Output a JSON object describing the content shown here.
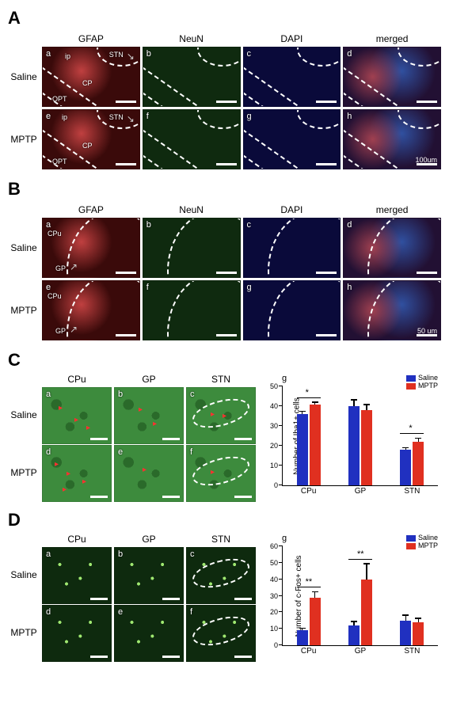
{
  "colors": {
    "gfap": "#3a0a0a",
    "neun": "#0f2a0f",
    "dapi": "#0a0a3a",
    "merged": "#221033",
    "iba_bg": "#3d8b3d",
    "cfos_bg": "#0e2a0e",
    "saline_bar": "#2030c0",
    "mptp_bar": "#e03020",
    "scalebar": "#ffffff"
  },
  "A": {
    "cols": [
      "GFAP",
      "NeuN",
      "DAPI",
      "merged"
    ],
    "rows": [
      "Saline",
      "MPTP"
    ],
    "subs": [
      "a",
      "b",
      "c",
      "d",
      "e",
      "f",
      "g",
      "h"
    ],
    "channels": [
      "gfap",
      "neun",
      "dapi",
      "merged",
      "gfap",
      "neun",
      "dapi",
      "merged"
    ],
    "regions": [
      "ip",
      "STN",
      "CP",
      "OPT"
    ],
    "scale": "100um"
  },
  "B": {
    "cols": [
      "GFAP",
      "NeuN",
      "DAPI",
      "merged"
    ],
    "rows": [
      "Saline",
      "MPTP"
    ],
    "subs": [
      "a",
      "b",
      "c",
      "d",
      "e",
      "f",
      "g",
      "h"
    ],
    "channels": [
      "gfap",
      "neun",
      "dapi",
      "merged",
      "gfap",
      "neun",
      "dapi",
      "merged"
    ],
    "regions": [
      "CPu",
      "GP"
    ],
    "scale": "50 um"
  },
  "C": {
    "cols": [
      "CPu",
      "GP",
      "STN"
    ],
    "rows": [
      "Saline",
      "MPTP"
    ],
    "subs": [
      "a",
      "b",
      "c",
      "d",
      "e",
      "f"
    ],
    "chart_sub": "g",
    "chart": {
      "type": "bar-grouped",
      "ylabel": "Number of Iba1+ cells",
      "ymax": 50,
      "ytick_step": 10,
      "categories": [
        "CPu",
        "GP",
        "STN"
      ],
      "series": [
        {
          "name": "Saline",
          "color_key": "saline_bar",
          "values": [
            36,
            40,
            18
          ],
          "err": [
            1.2,
            3.0,
            0.8
          ]
        },
        {
          "name": "MPTP",
          "color_key": "mptp_bar",
          "values": [
            41,
            38,
            22
          ],
          "err": [
            0.8,
            2.5,
            1.5
          ]
        }
      ],
      "sig": [
        {
          "cat": "CPu",
          "label": "*"
        },
        {
          "cat": "STN",
          "label": "*"
        }
      ]
    }
  },
  "D": {
    "cols": [
      "CPu",
      "GP",
      "STN"
    ],
    "rows": [
      "Saline",
      "MPTP"
    ],
    "subs": [
      "a",
      "b",
      "c",
      "d",
      "e",
      "f"
    ],
    "chart_sub": "g",
    "chart": {
      "type": "bar-grouped",
      "ylabel": "Number of c-Fos+ cells",
      "ymax": 60,
      "ytick_step": 10,
      "categories": [
        "CPu",
        "GP",
        "STN"
      ],
      "series": [
        {
          "name": "Saline",
          "color_key": "saline_bar",
          "values": [
            9,
            12,
            15
          ],
          "err": [
            1.0,
            2.0,
            3.0
          ]
        },
        {
          "name": "MPTP",
          "color_key": "mptp_bar",
          "values": [
            29,
            40,
            14
          ],
          "err": [
            3.0,
            9.0,
            2.0
          ]
        }
      ],
      "sig": [
        {
          "cat": "CPu",
          "label": "**"
        },
        {
          "cat": "GP",
          "label": "**"
        }
      ]
    }
  }
}
